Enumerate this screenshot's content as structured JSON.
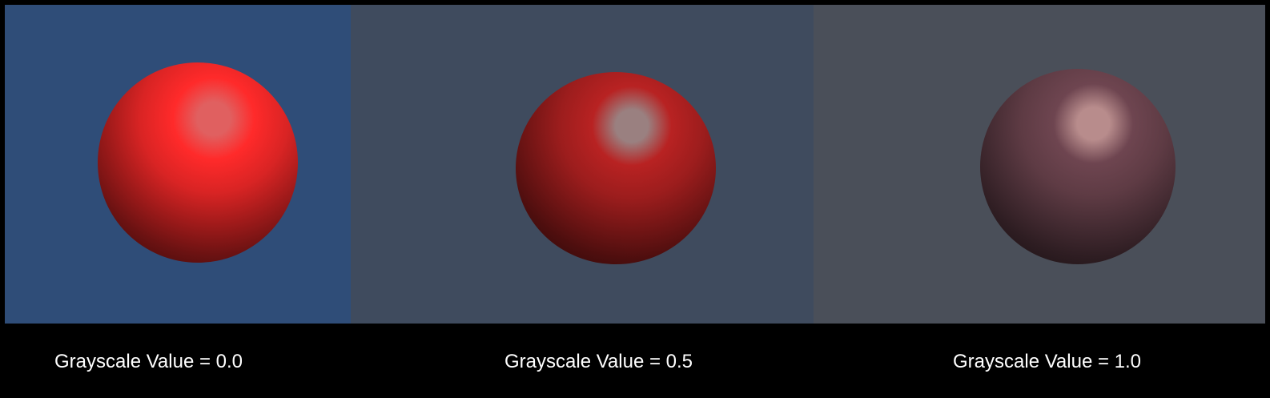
{
  "panels": [
    {
      "caption": "Grayscale Value = 0.0",
      "grayscale_value": 0.0,
      "background_color": "#2f4d78",
      "sphere_color": "#ff2a2a",
      "highlight_color": "#e06060"
    },
    {
      "caption": "Grayscale Value = 0.5",
      "grayscale_value": 0.5,
      "background_color": "#3f4b5e",
      "sphere_color": "#b82222",
      "highlight_color": "#9a8080"
    },
    {
      "caption": "Grayscale Value = 1.0",
      "grayscale_value": 1.0,
      "background_color": "#4a4f59",
      "sphere_color": "#6e4550",
      "highlight_color": "#b88c8c"
    }
  ]
}
